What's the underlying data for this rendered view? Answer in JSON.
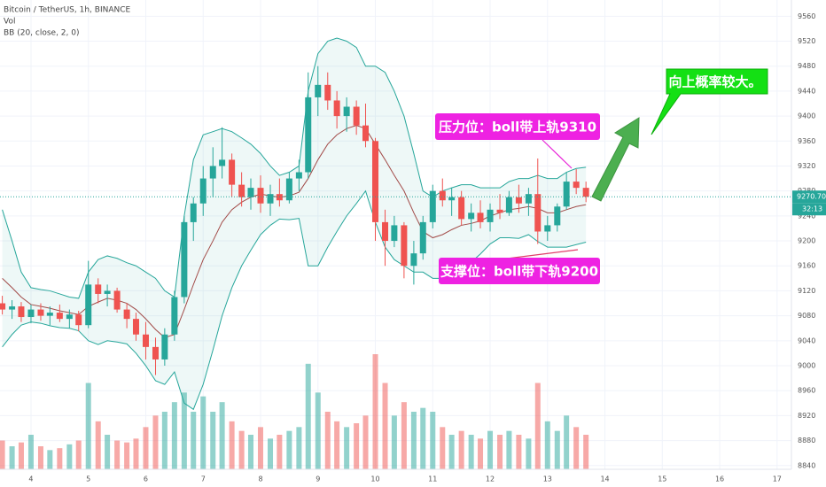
{
  "chart_data": {
    "type": "candlestick",
    "title": "Bitcoin / TetherUS, 1h, BINANCE",
    "volume_label": "Vol",
    "indicator_label": "BB (20, close, 2, 0)",
    "x": [
      3.5,
      3.67,
      3.83,
      4,
      4.17,
      4.33,
      4.5,
      4.67,
      4.83,
      5,
      5.17,
      5.33,
      5.5,
      5.67,
      5.83,
      6,
      6.17,
      6.33,
      6.5,
      6.67,
      6.83,
      7,
      7.17,
      7.33,
      7.5,
      7.67,
      7.83,
      8,
      8.17,
      8.33,
      8.5,
      8.67,
      8.83,
      9,
      9.17,
      9.33,
      9.5,
      9.67,
      9.83,
      10,
      10.17,
      10.33,
      10.5,
      10.67,
      10.83,
      11,
      11.17,
      11.33,
      11.5,
      11.67,
      11.83,
      12,
      12.17,
      12.33,
      12.5,
      12.67,
      12.83,
      13,
      13.17,
      13.33,
      13.5,
      13.67
    ],
    "open": [
      9100,
      9090,
      9095,
      9078,
      9090,
      9080,
      9085,
      9075,
      9082,
      9065,
      9130,
      9115,
      9120,
      9090,
      9075,
      9050,
      9030,
      9010,
      9050,
      9110,
      9230,
      9260,
      9300,
      9320,
      9330,
      9290,
      9270,
      9285,
      9260,
      9275,
      9265,
      9300,
      9310,
      9430,
      9450,
      9425,
      9400,
      9415,
      9385,
      9360,
      9230,
      9200,
      9225,
      9160,
      9180,
      9230,
      9280,
      9265,
      9270,
      9235,
      9245,
      9230,
      9250,
      9245,
      9270,
      9260,
      9275,
      9215,
      9225,
      9255,
      9295,
      9285
    ],
    "high": [
      9112,
      9105,
      9102,
      9098,
      9100,
      9095,
      9098,
      9090,
      9088,
      9168,
      9140,
      9130,
      9125,
      9100,
      9085,
      9070,
      9045,
      9060,
      9120,
      9240,
      9270,
      9320,
      9350,
      9382,
      9340,
      9310,
      9300,
      9305,
      9290,
      9300,
      9310,
      9330,
      9470,
      9480,
      9470,
      9440,
      9430,
      9425,
      9420,
      9365,
      9250,
      9240,
      9230,
      9200,
      9240,
      9290,
      9300,
      9285,
      9280,
      9260,
      9265,
      9260,
      9275,
      9280,
      9290,
      9285,
      9332,
      9240,
      9260,
      9310,
      9315,
      9295
    ],
    "low": [
      9082,
      9075,
      9070,
      9068,
      9072,
      9065,
      9070,
      9060,
      9055,
      9060,
      9100,
      9095,
      9085,
      9060,
      9040,
      9010,
      8985,
      9000,
      9040,
      9100,
      9200,
      9240,
      9270,
      9300,
      9270,
      9255,
      9250,
      9245,
      9240,
      9255,
      9260,
      9280,
      9300,
      9400,
      9410,
      9380,
      9375,
      9370,
      9350,
      9200,
      9160,
      9190,
      9140,
      9130,
      9170,
      9220,
      9255,
      9240,
      9225,
      9215,
      9220,
      9215,
      9235,
      9240,
      9245,
      9240,
      9195,
      9200,
      9215,
      9250,
      9275,
      9262
    ],
    "close": [
      9090,
      9095,
      9078,
      9090,
      9080,
      9085,
      9075,
      9082,
      9065,
      9130,
      9115,
      9120,
      9090,
      9075,
      9050,
      9030,
      9010,
      9050,
      9110,
      9230,
      9260,
      9300,
      9320,
      9330,
      9290,
      9270,
      9285,
      9260,
      9275,
      9265,
      9300,
      9310,
      9430,
      9450,
      9425,
      9400,
      9415,
      9385,
      9360,
      9230,
      9200,
      9225,
      9160,
      9180,
      9230,
      9280,
      9265,
      9270,
      9235,
      9245,
      9230,
      9250,
      9245,
      9270,
      9260,
      9275,
      9215,
      9225,
      9255,
      9295,
      9285,
      9270.7
    ],
    "volume": [
      15,
      12,
      14,
      18,
      12,
      10,
      11,
      13,
      15,
      45,
      25,
      18,
      15,
      14,
      16,
      22,
      28,
      30,
      35,
      40,
      30,
      38,
      30,
      35,
      25,
      20,
      18,
      22,
      16,
      18,
      20,
      22,
      55,
      40,
      30,
      25,
      22,
      24,
      28,
      60,
      45,
      28,
      35,
      30,
      32,
      30,
      22,
      18,
      20,
      18,
      16,
      20,
      18,
      20,
      18,
      16,
      45,
      25,
      20,
      28,
      22,
      18
    ],
    "bb_upper": [
      9250,
      9200,
      9150,
      9125,
      9122,
      9120,
      9115,
      9110,
      9108,
      9150,
      9170,
      9176,
      9172,
      9165,
      9160,
      9150,
      9140,
      9120,
      9110,
      9240,
      9330,
      9370,
      9375,
      9380,
      9375,
      9365,
      9355,
      9340,
      9320,
      9305,
      9310,
      9320,
      9440,
      9500,
      9520,
      9525,
      9520,
      9510,
      9480,
      9480,
      9470,
      9440,
      9400,
      9340,
      9280,
      9270,
      9280,
      9285,
      9290,
      9290,
      9285,
      9285,
      9285,
      9295,
      9300,
      9300,
      9305,
      9300,
      9300,
      9310,
      9316,
      9318
    ],
    "bb_basis": [
      9140,
      9125,
      9110,
      9098,
      9095,
      9092,
      9088,
      9085,
      9082,
      9095,
      9102,
      9108,
      9105,
      9100,
      9090,
      9075,
      9058,
      9045,
      9050,
      9090,
      9130,
      9170,
      9200,
      9230,
      9250,
      9262,
      9270,
      9275,
      9272,
      9270,
      9272,
      9278,
      9300,
      9330,
      9355,
      9370,
      9380,
      9385,
      9380,
      9355,
      9330,
      9305,
      9280,
      9245,
      9215,
      9205,
      9210,
      9218,
      9225,
      9228,
      9232,
      9240,
      9245,
      9250,
      9252,
      9255,
      9252,
      9245,
      9245,
      9250,
      9255,
      9258
    ],
    "bb_lower": [
      9030,
      9050,
      9065,
      9070,
      9068,
      9064,
      9061,
      9060,
      9056,
      9040,
      9034,
      9040,
      9038,
      9035,
      9020,
      9000,
      8976,
      8970,
      8990,
      8940,
      8930,
      8970,
      9025,
      9080,
      9125,
      9160,
      9185,
      9210,
      9225,
      9235,
      9234,
      9236,
      9160,
      9160,
      9190,
      9215,
      9240,
      9260,
      9280,
      9230,
      9190,
      9170,
      9160,
      9150,
      9150,
      9140,
      9140,
      9150,
      9160,
      9166,
      9179,
      9195,
      9205,
      9205,
      9204,
      9210,
      9199,
      9190,
      9190,
      9190,
      9194,
      9198
    ],
    "xlim": [
      3.46,
      17.25
    ],
    "xticks": [
      4,
      5,
      6,
      7,
      8,
      9,
      10,
      11,
      12,
      13,
      14,
      15,
      16,
      17
    ],
    "ylim": [
      8834,
      9586
    ],
    "yticks": [
      9560,
      9520,
      9480,
      9440,
      9400,
      9360,
      9320,
      9280,
      9240,
      9200,
      9160,
      9120,
      9080,
      9040,
      9000,
      8960,
      8920,
      8880,
      8840
    ],
    "volume_ylim": [
      0,
      60
    ],
    "last_price": {
      "value": 9270.7,
      "label": "9270.70"
    },
    "countdown": "32:13",
    "up_color": "#26a69a",
    "down_color": "#ef5350",
    "band_color": "#26a69a",
    "basis_color": "#a24b48",
    "annotations": [
      "压力位：boll带上轨9310",
      "支撑位：boll带下轨9200",
      "向上概率较大。"
    ]
  }
}
